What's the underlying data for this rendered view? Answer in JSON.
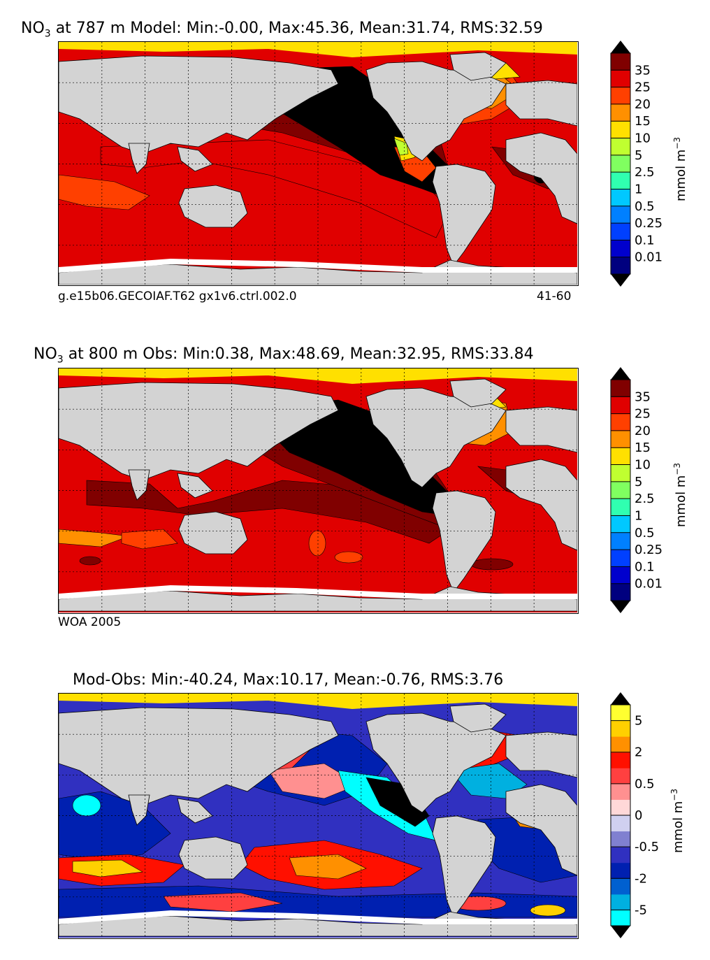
{
  "chart_data": [
    {
      "type": "heatmap",
      "title_prefix": "NO",
      "title_sub": "3",
      "title_rest": " at 787 m Model: Min:-0.00, Max:45.36, Mean:31.74, RMS:32.59",
      "caption_left": "g.e15b06.GECOIAF.T62 gx1v6.ctrl.002.0",
      "caption_right": "41-60",
      "colorbar": {
        "unit": "mmol m",
        "unit_sup": "−3",
        "ticks": [
          "0.01",
          "0.1",
          "0.25",
          "0.5",
          "1",
          "2.5",
          "5",
          "10",
          "15",
          "20",
          "25",
          "35"
        ],
        "colors": [
          "#00007f",
          "#0000cd",
          "#0040ff",
          "#0080ff",
          "#00c8ff",
          "#30ffb0",
          "#80ff60",
          "#c0ff30",
          "#ffe000",
          "#ff9000",
          "#ff4000",
          "#e00000",
          "#800000"
        ],
        "over_color": "#000000",
        "under_color": "#000000"
      }
    },
    {
      "type": "heatmap",
      "title_prefix": "NO",
      "title_sub": "3",
      "title_rest": " at 800 m Obs: Min:0.38, Max:48.69, Mean:32.95, RMS:33.84",
      "caption_left": "WOA 2005",
      "caption_right": "",
      "colorbar": {
        "unit": "mmol m",
        "unit_sup": "−3",
        "ticks": [
          "0.01",
          "0.1",
          "0.25",
          "0.5",
          "1",
          "2.5",
          "5",
          "10",
          "15",
          "20",
          "25",
          "35"
        ],
        "colors": [
          "#00007f",
          "#0000cd",
          "#0040ff",
          "#0080ff",
          "#00c8ff",
          "#30ffb0",
          "#80ff60",
          "#c0ff30",
          "#ffe000",
          "#ff9000",
          "#ff4000",
          "#e00000",
          "#800000"
        ],
        "over_color": "#000000",
        "under_color": "#000000"
      }
    },
    {
      "type": "heatmap",
      "title_prefix": "",
      "title_sub": "",
      "title_rest": "Mod-Obs: Min:-40.24, Max:10.17, Mean:-0.76, RMS:3.76",
      "caption_left": "",
      "caption_right": "",
      "colorbar": {
        "unit": "mmol m",
        "unit_sup": "−3",
        "ticks": [
          "-5",
          "-2",
          "-0.5",
          "0",
          "0.5",
          "2",
          "5"
        ],
        "tick_slots": [
          1,
          3,
          5,
          7,
          9,
          11,
          13
        ],
        "colors": [
          "#00ffff",
          "#00b0e0",
          "#0060d0",
          "#0020b0",
          "#3030c0",
          "#8080d0",
          "#d0d0f0",
          "#ffd8d8",
          "#ff9090",
          "#ff4040",
          "#ff1000",
          "#ff9000",
          "#ffd000",
          "#ffff30"
        ],
        "over_color": "#000000",
        "under_color": "#000000"
      }
    }
  ]
}
